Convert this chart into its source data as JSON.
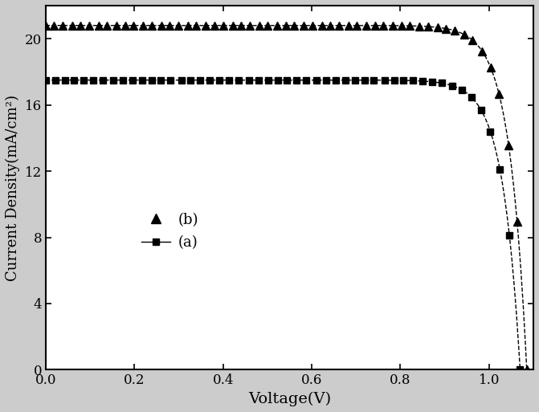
{
  "title": "",
  "xlabel": "Voltage(V)",
  "ylabel": "Current Density(mA/cm²)",
  "xlim": [
    0.0,
    1.1
  ],
  "ylim": [
    0,
    22
  ],
  "yticks": [
    0,
    4,
    8,
    12,
    16,
    20
  ],
  "xticks": [
    0.0,
    0.2,
    0.4,
    0.6,
    0.8,
    1.0
  ],
  "series_a": {
    "label": "(a)",
    "color": "black",
    "linestyle": "--",
    "marker": "s",
    "markersize": 6,
    "Jsc": 17.5,
    "Voc": 1.07,
    "n_ideality": 1.5
  },
  "series_b": {
    "label": "(b)",
    "color": "black",
    "linestyle": "--",
    "marker": "^",
    "markersize": 7,
    "Jsc": 20.8,
    "Voc": 1.085,
    "n_ideality": 1.5
  },
  "n_markers_a": 50,
  "n_markers_b": 55,
  "background_color": "white",
  "figure_facecolor": "#cccccc"
}
